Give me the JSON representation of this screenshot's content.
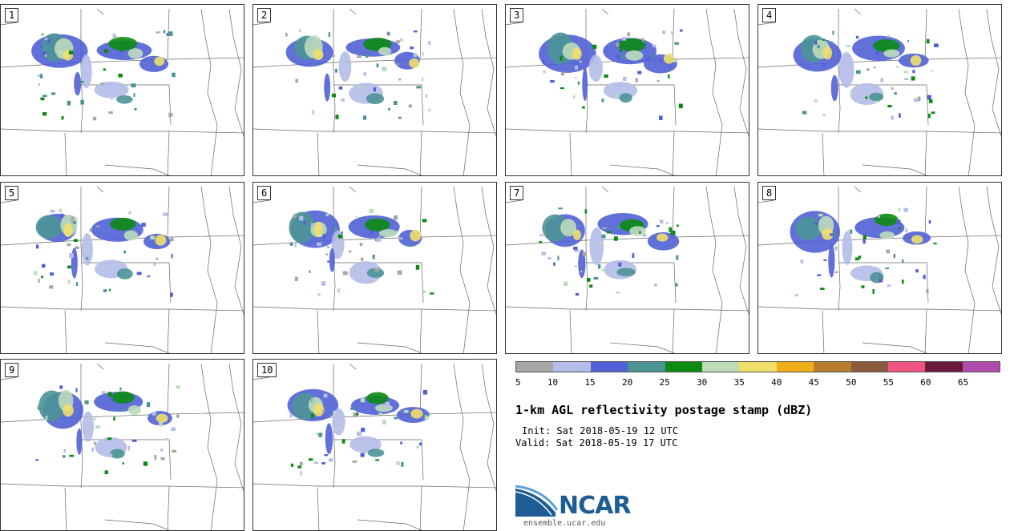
{
  "panels": [
    {
      "label": "1"
    },
    {
      "label": "2"
    },
    {
      "label": "3"
    },
    {
      "label": "4"
    },
    {
      "label": "5"
    },
    {
      "label": "6"
    },
    {
      "label": "7"
    },
    {
      "label": "8"
    },
    {
      "label": "9"
    },
    {
      "label": "10"
    }
  ],
  "colorbar": {
    "colors": [
      "#a6a6a6",
      "#b4bde8",
      "#5160d6",
      "#4c9396",
      "#0c8a12",
      "#bcdcba",
      "#f0df6b",
      "#f0ae19",
      "#b87d2c",
      "#8c5a3c",
      "#f05480",
      "#6a1a3c",
      "#b04cab"
    ],
    "ticks": [
      "5",
      "10",
      "15",
      "20",
      "25",
      "30",
      "35",
      "40",
      "45",
      "50",
      "55",
      "60",
      "65"
    ]
  },
  "title": "1-km AGL reflectivity postage stamp (dBZ)",
  "init": "Init: Sat 2018-05-19 12 UTC",
  "valid": "Valid: Sat 2018-05-19 17 UTC",
  "logo": {
    "name": "NCAR",
    "url": "ensemble.ucar.edu"
  }
}
